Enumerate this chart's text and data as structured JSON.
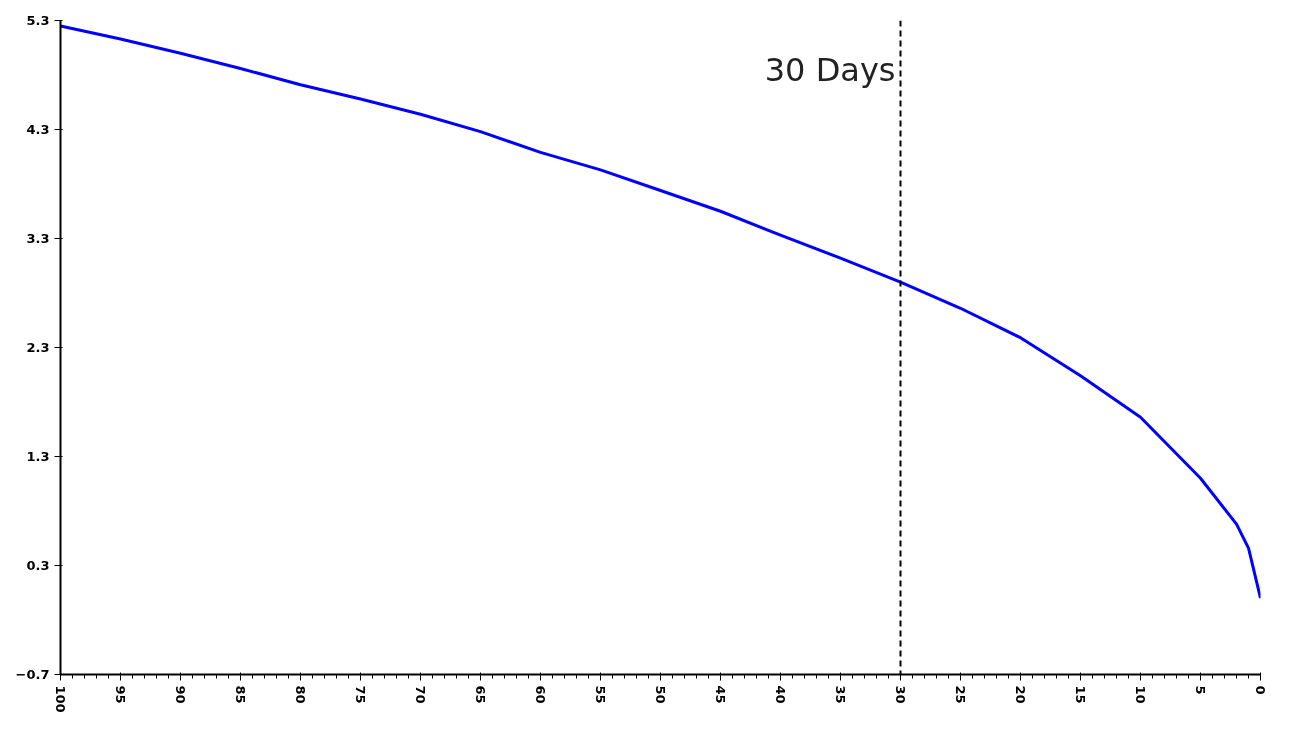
{
  "chart_data": {
    "type": "line",
    "x": [
      100,
      95,
      90,
      85,
      80,
      75,
      70,
      65,
      60,
      55,
      50,
      45,
      40,
      35,
      30,
      25,
      20,
      15,
      10,
      5,
      2,
      1,
      0
    ],
    "series": [
      {
        "color": "#0000ff",
        "values": [
          5.25,
          5.13,
          5.0,
          4.86,
          4.71,
          4.58,
          4.44,
          4.28,
          4.09,
          3.93,
          3.74,
          3.55,
          3.33,
          3.12,
          2.9,
          2.66,
          2.39,
          2.04,
          1.66,
          1.1,
          0.68,
          0.46,
          0
        ]
      }
    ],
    "xlim": [
      100,
      0
    ],
    "ylim": [
      -0.7,
      5.3
    ],
    "xticks": [
      100,
      95,
      90,
      85,
      80,
      75,
      70,
      65,
      60,
      55,
      50,
      45,
      40,
      35,
      30,
      25,
      20,
      15,
      10,
      5,
      0
    ],
    "yticks": [
      -0.7,
      0.3,
      1.3,
      2.3,
      3.3,
      4.3,
      5.3
    ],
    "ref_lines": [
      {
        "axis": "x",
        "value": 30,
        "label": "30 Days",
        "color": "#000000",
        "line_style": "dashed"
      }
    ],
    "grid": false,
    "marker": "none",
    "line_style": "solid"
  }
}
